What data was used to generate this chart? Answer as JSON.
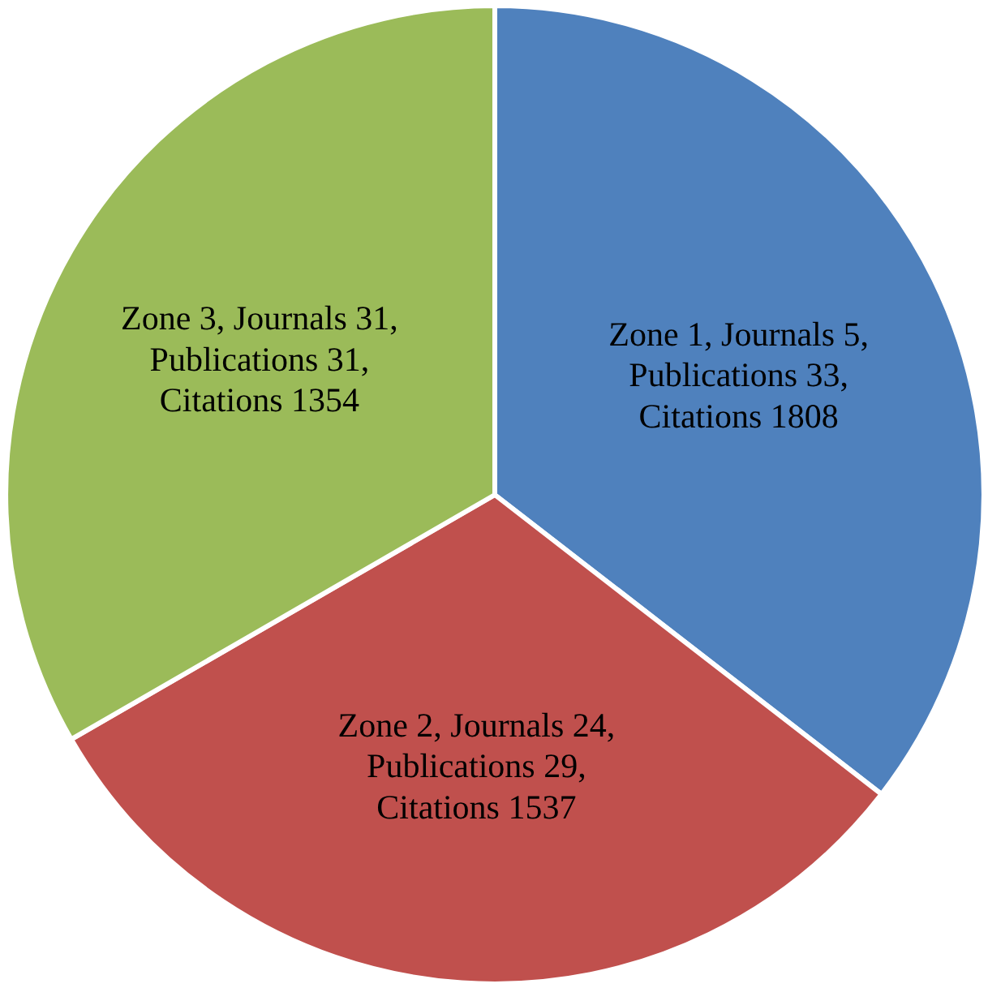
{
  "chart_data": {
    "type": "pie",
    "categories": [
      "Zone 1, Journals 5, Publications 33, Citations 1808",
      "Zone 2, Journals 24, Publications 29, Citations 1537",
      "Zone 3, Journals 31, Publications 31, Citations 1354"
    ],
    "values": [
      33,
      29,
      31
    ],
    "colors": [
      "#4f81bd",
      "#c0504d",
      "#9bbb59"
    ]
  }
}
